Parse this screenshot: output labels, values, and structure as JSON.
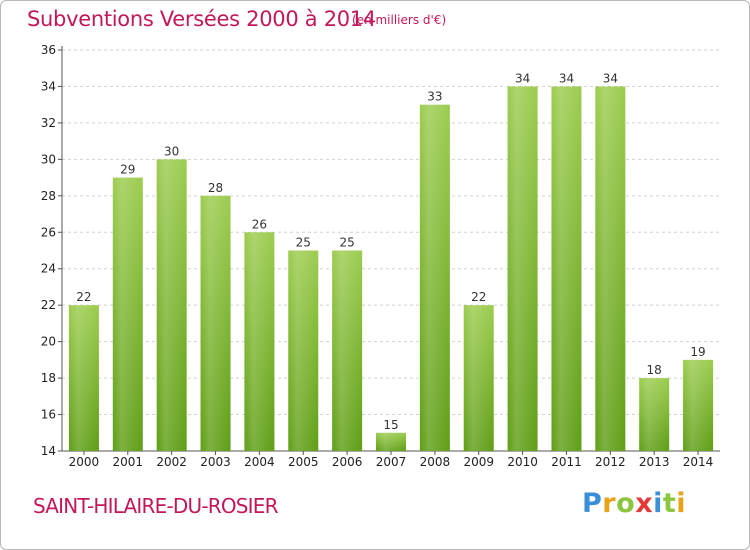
{
  "chart_data": {
    "type": "bar",
    "title": "Subventions Versées 2000 à 2014",
    "subtitle": "(en milliers d'€)",
    "categories": [
      "2000",
      "2001",
      "2002",
      "2003",
      "2004",
      "2005",
      "2006",
      "2007",
      "2008",
      "2009",
      "2010",
      "2011",
      "2012",
      "2013",
      "2014"
    ],
    "values": [
      22,
      29,
      30,
      28,
      26,
      25,
      25,
      15,
      33,
      22,
      34,
      34,
      34,
      18,
      19
    ],
    "ylim": [
      14,
      36
    ],
    "yticks": [
      14,
      16,
      18,
      20,
      22,
      24,
      26,
      28,
      30,
      32,
      34,
      36
    ],
    "grid": true,
    "bar_color": "#7fbf2f"
  },
  "commune": "SAINT-HILAIRE-DU-ROSIER",
  "logo": {
    "letters": [
      "P",
      "r",
      "o",
      "x",
      "i",
      "t",
      "i"
    ]
  }
}
